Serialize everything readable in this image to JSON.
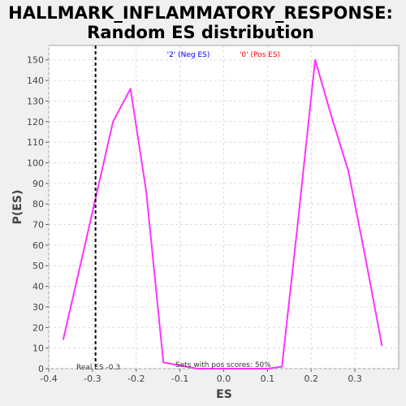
{
  "chart_data": {
    "type": "line",
    "title_line1": "HALLMARK_INFLAMMATORY_RESPONSE:",
    "title_line2": "Random ES distribution",
    "xlabel": "ES",
    "ylabel": "P(ES)",
    "xlim": [
      -0.4,
      0.4
    ],
    "ylim": [
      0,
      157
    ],
    "x_ticks": [
      -0.4,
      -0.3,
      -0.2,
      -0.1,
      0.0,
      0.1,
      0.2,
      0.3
    ],
    "x_tick_labels": [
      "-0.4",
      "-0.3",
      "-0.2",
      "-0.1",
      "0.0",
      "0.1",
      "0.2",
      "0.3"
    ],
    "y_ticks": [
      0,
      10,
      20,
      30,
      40,
      50,
      60,
      70,
      80,
      90,
      100,
      110,
      120,
      130,
      140,
      150
    ],
    "y_tick_labels": [
      "0",
      "10",
      "20",
      "30",
      "40",
      "50",
      "60",
      "70",
      "80",
      "90",
      "100",
      "110",
      "120",
      "130",
      "140",
      "150"
    ],
    "grid": true,
    "series": [
      {
        "color": "#ff33ff",
        "x": [
          -0.367,
          -0.328,
          -0.253,
          -0.213,
          -0.177,
          -0.138,
          -0.061,
          0.101,
          0.133,
          0.168,
          0.209,
          0.247,
          0.285,
          0.323,
          0.362
        ],
        "y": [
          14,
          50,
          120,
          136,
          86,
          3,
          0,
          0,
          1,
          68,
          150,
          122,
          96,
          55,
          11
        ]
      }
    ],
    "legend": [
      {
        "label": "'2' (Neg ES)",
        "color": "#0000ff"
      },
      {
        "label": "'0' (Pos ES)",
        "color": "#ff0000"
      }
    ],
    "real_es": {
      "x": -0.293,
      "label": "Real ES -0.3"
    },
    "annotation": "Sets with pos scores: 50%"
  }
}
